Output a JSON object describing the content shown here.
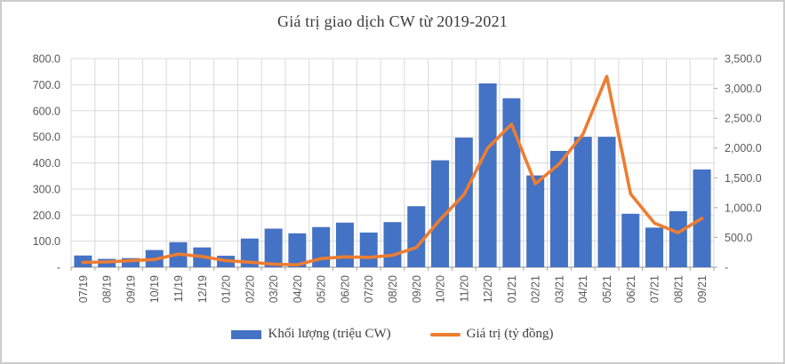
{
  "title": "Giá trị giao dịch CW từ 2019-2021",
  "colors": {
    "bar": "#4472C4",
    "line": "#ED7D31",
    "grid": "#D9D9D9",
    "axis_line": "#A6A6A6",
    "axis_text": "#595959",
    "title_text": "#3a3a3a"
  },
  "legend": {
    "items": [
      {
        "label": "Khối lượng (triệu CW)",
        "type": "bar"
      },
      {
        "label": "Giá trị (tỷ đồng)",
        "type": "line"
      }
    ]
  },
  "chart_data": {
    "type": "bar",
    "subtype": "combo-bar-line-dual-axis",
    "title": "Giá trị giao dịch CW từ 2019-2021",
    "categories": [
      "07/19",
      "08/19",
      "09/19",
      "10/19",
      "11/19",
      "12/19",
      "01/20",
      "02/20",
      "03/20",
      "04/20",
      "05/20",
      "06/20",
      "07/20",
      "08/20",
      "09/20",
      "10/20",
      "11/20",
      "12/20",
      "01/21",
      "02/21",
      "03/21",
      "04/21",
      "05/21",
      "06/21",
      "07/21",
      "08/21",
      "09/21"
    ],
    "series": [
      {
        "name": "Khối lượng (triệu CW)",
        "type": "bar",
        "axis": "left",
        "values": [
          45,
          32,
          35,
          66,
          96,
          76,
          44,
          110,
          148,
          130,
          154,
          171,
          133,
          173,
          234,
          410,
          497,
          705,
          648,
          352,
          446,
          500,
          500,
          205,
          152,
          215,
          375
        ]
      },
      {
        "name": "Giá trị (tỷ đồng)",
        "type": "line",
        "axis": "right",
        "values": [
          80,
          90,
          110,
          130,
          220,
          180,
          110,
          85,
          50,
          40,
          145,
          175,
          165,
          200,
          330,
          800,
          1215,
          2000,
          2400,
          1400,
          1730,
          2230,
          3200,
          1230,
          740,
          580,
          820
        ]
      }
    ],
    "left_axis": {
      "min": 0,
      "max": 800,
      "step": 100,
      "tick_labels": [
        "-",
        "100.0",
        "200.0",
        "300.0",
        "400.0",
        "500.0",
        "600.0",
        "700.0",
        "800.0"
      ]
    },
    "right_axis": {
      "min": 0,
      "max": 3500,
      "step": 500,
      "tick_labels": [
        "-",
        "500.0",
        "1,000.0",
        "1,500.0",
        "2,000.0",
        "2,500.0",
        "3,000.0",
        "3,500.0"
      ]
    },
    "grid": true,
    "legend_position": "bottom",
    "x_tick_rotation": -90
  }
}
